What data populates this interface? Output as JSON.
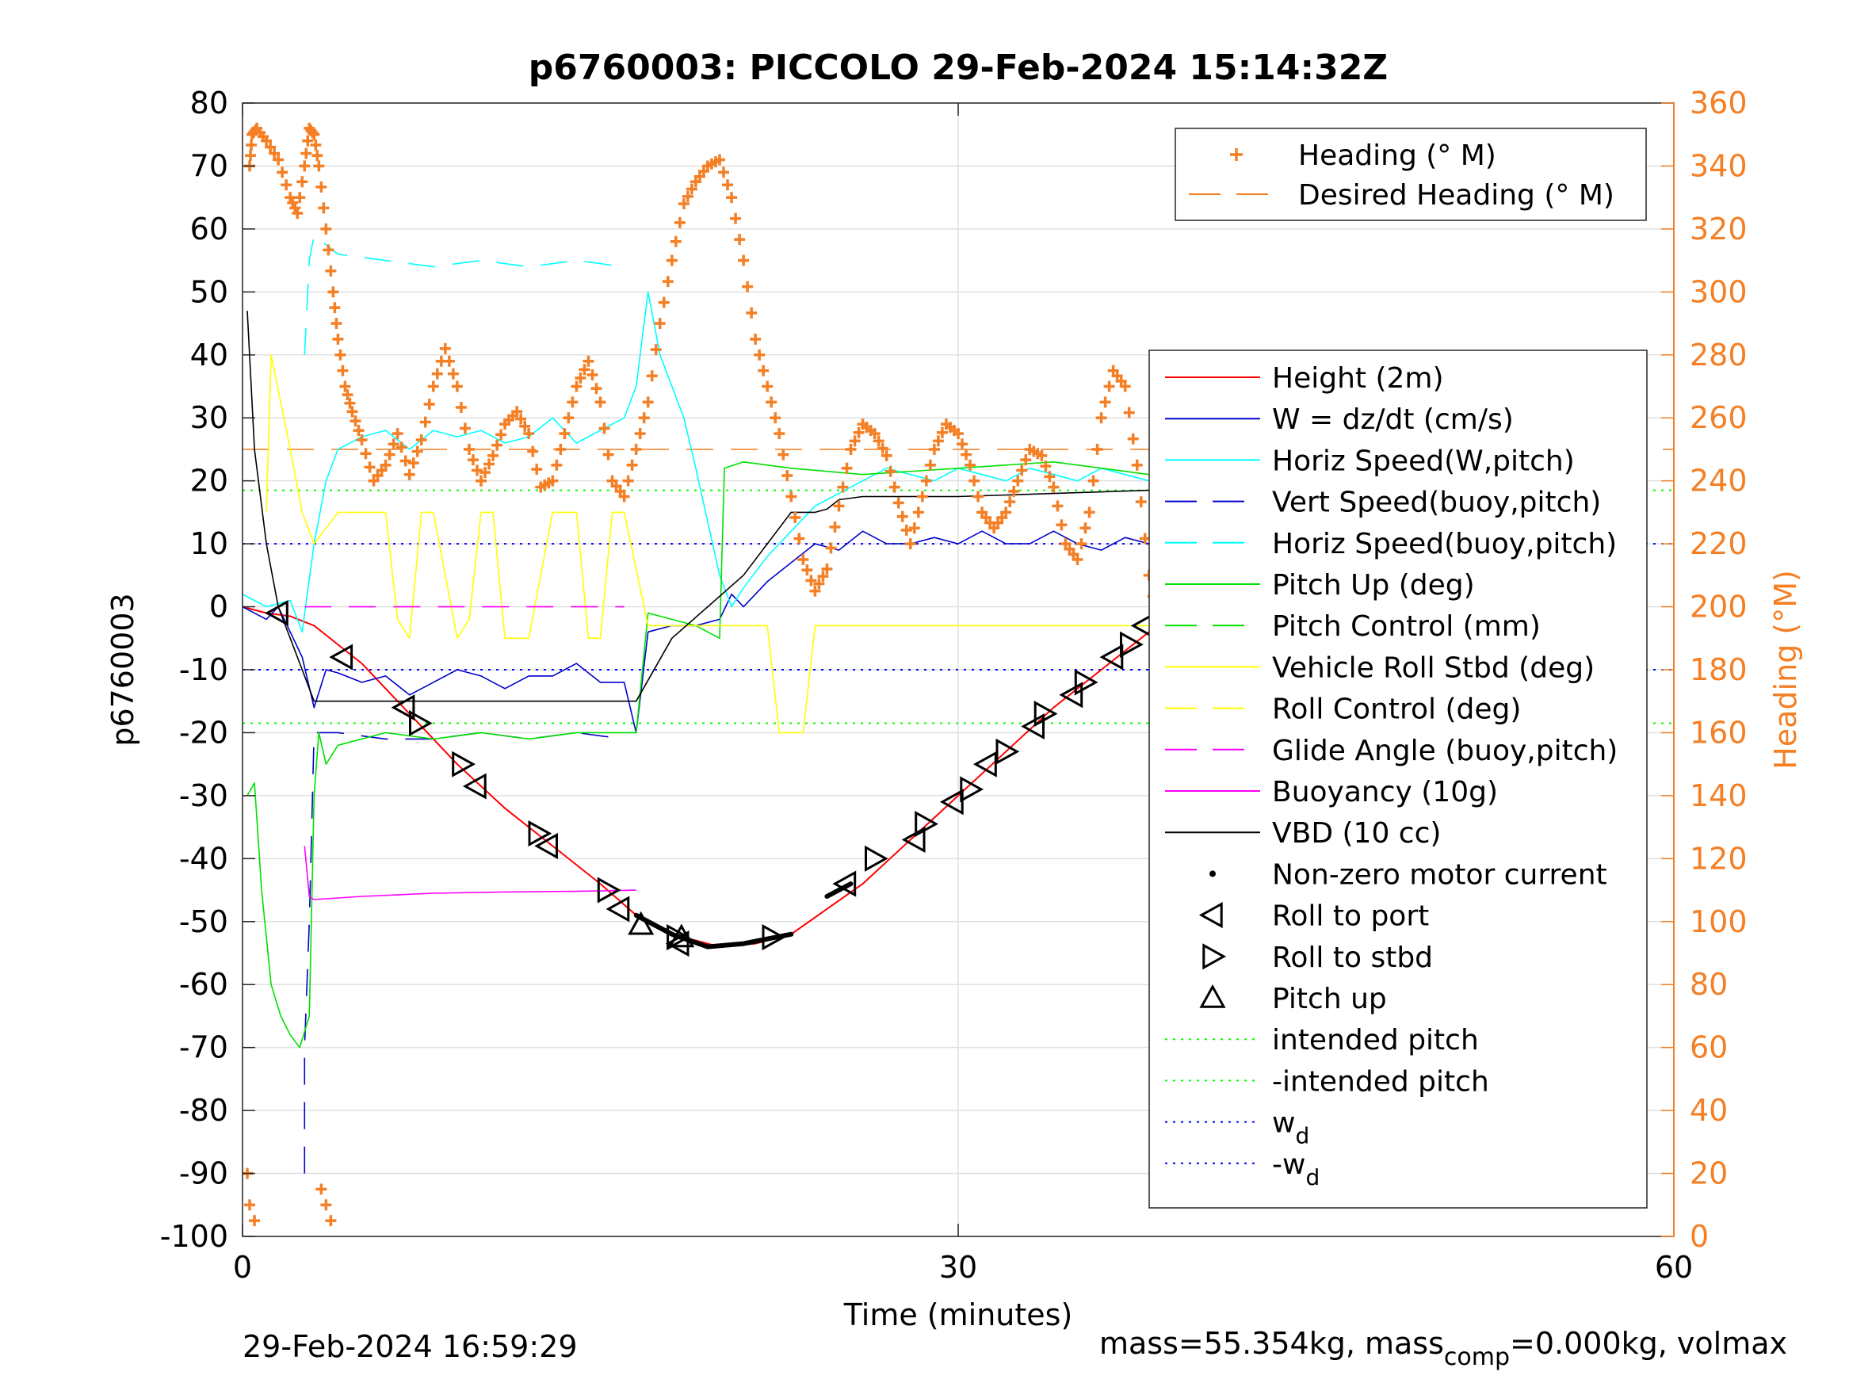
{
  "chart_data": {
    "type": "line",
    "title": "p6760003: PICCOLO 29-Feb-2024 15:14:32Z",
    "xlabel": "Time (minutes)",
    "ylabel_left": "p6760003",
    "ylabel_right": "Heading (°M)",
    "xlim": [
      0,
      60
    ],
    "ylim_left": [
      -100,
      80
    ],
    "ylim_right": [
      0,
      360
    ],
    "x_ticks": [
      "0",
      "30",
      "60"
    ],
    "y_left_ticks": [
      "80",
      "70",
      "60",
      "50",
      "40",
      "30",
      "20",
      "10",
      "0",
      "-10",
      "-20",
      "-30",
      "-40",
      "-50",
      "-60",
      "-70",
      "-80",
      "-90",
      "-100"
    ],
    "y_right_ticks": [
      "360",
      "340",
      "320",
      "300",
      "280",
      "260",
      "240",
      "220",
      "200",
      "180",
      "160",
      "140",
      "120",
      "100",
      "80",
      "60",
      "40",
      "20",
      "0"
    ],
    "grid": true,
    "footer_left": "29-Feb-2024 16:59:29",
    "footer_right": {
      "part1": "mass=55.354kg, mass",
      "subscript": "comp",
      "part2": "=0.000kg, volmax"
    },
    "legend_heading": [
      {
        "label": "Heading (° M)",
        "color": "#f47f24",
        "style": "plus"
      },
      {
        "label": "Desired Heading (° M)",
        "color": "#f47f24",
        "style": "dashed"
      }
    ],
    "legend_main": [
      {
        "label": "Height (2m)",
        "color": "#ff0000",
        "style": "solid"
      },
      {
        "label": "W = dz/dt (cm/s)",
        "color": "#0000cc",
        "style": "solid"
      },
      {
        "label": "Horiz Speed(W,pitch)",
        "color": "#00ffff",
        "style": "solid"
      },
      {
        "label": "Vert Speed(buoy,pitch)",
        "color": "#0000cc",
        "style": "dashed"
      },
      {
        "label": "Horiz Speed(buoy,pitch)",
        "color": "#00ffff",
        "style": "dashed"
      },
      {
        "label": "Pitch Up (deg)",
        "color": "#00e000",
        "style": "solid"
      },
      {
        "label": "Pitch Control (mm)",
        "color": "#00e000",
        "style": "dashed"
      },
      {
        "label": "Vehicle Roll Stbd (deg)",
        "color": "#ffff00",
        "style": "solid"
      },
      {
        "label": "Roll Control (deg)",
        "color": "#ffff00",
        "style": "dashed"
      },
      {
        "label": "Glide Angle (buoy,pitch)",
        "color": "#ff00ff",
        "style": "dashed"
      },
      {
        "label": "Buoyancy (10g)",
        "color": "#ff00ff",
        "style": "solid"
      },
      {
        "label": "VBD (10 cc)",
        "color": "#000000",
        "style": "solid"
      },
      {
        "label": "Non-zero motor current",
        "color": "#000000",
        "style": "dot"
      },
      {
        "label": "Roll to port",
        "color": "#000000",
        "style": "tri-left"
      },
      {
        "label": "Roll to stbd",
        "color": "#000000",
        "style": "tri-right"
      },
      {
        "label": "Pitch up",
        "color": "#000000",
        "style": "tri-up"
      },
      {
        "label": "intended pitch",
        "color": "#00ff00",
        "style": "dotted"
      },
      {
        "label": "-intended pitch",
        "color": "#00ff00",
        "style": "dotted"
      },
      {
        "label": "w",
        "sub": "d",
        "color": "#0000ff",
        "style": "dotted"
      },
      {
        "label": "-w",
        "sub": "d",
        "color": "#0000ff",
        "style": "dotted"
      }
    ],
    "series": [
      {
        "name": "Height (2m)",
        "color": "#ff0000",
        "axis": "left",
        "x": [
          0,
          1,
          2,
          3,
          5,
          7,
          9,
          11,
          13,
          15,
          16.5,
          18,
          20,
          21.5,
          23,
          24.5,
          26,
          28,
          30,
          32,
          34,
          36,
          38,
          39.5,
          40
        ],
        "y": [
          0,
          -1,
          -1.5,
          -3,
          -9,
          -17,
          -25,
          -32,
          -38,
          -44,
          -49,
          -52,
          -54,
          -53.5,
          -52,
          -48,
          -44,
          -37,
          -30,
          -23,
          -16,
          -10,
          -4,
          0,
          0.5
        ]
      },
      {
        "name": "W = dz/dt (cm/s)",
        "color": "#0000cc",
        "axis": "left",
        "x": [
          0,
          1,
          1.5,
          2,
          2.5,
          3,
          3.5,
          4,
          5,
          6,
          7,
          8,
          9,
          10,
          11,
          12,
          13,
          14,
          15,
          16,
          16.5,
          17,
          18,
          19,
          20,
          20.5,
          21,
          22,
          23,
          24,
          25,
          26,
          27,
          28,
          29,
          30,
          31,
          32,
          33,
          34,
          35,
          36,
          37,
          38,
          39,
          39.5
        ],
        "y": [
          0,
          -2,
          0,
          -4,
          -8,
          -16,
          -10,
          -10.5,
          -12,
          -11,
          -14,
          -12,
          -10,
          -11,
          -13,
          -11,
          -11,
          -9,
          -12,
          -12,
          -20,
          -4,
          -3,
          -3,
          -2,
          2,
          0,
          4,
          7,
          10,
          9,
          12,
          10,
          10,
          11,
          10,
          12,
          10,
          10,
          12,
          10,
          9,
          11,
          10,
          9,
          0
        ]
      },
      {
        "name": "Horiz Speed(W,pitch)",
        "color": "#00ffff",
        "axis": "left",
        "x": [
          0,
          1,
          2,
          2.5,
          3,
          3.5,
          4,
          5,
          6,
          7,
          8,
          9,
          10,
          11,
          12,
          13,
          14,
          15,
          16,
          16.5,
          17,
          17.5,
          18,
          18.5,
          19,
          20,
          20.5,
          21,
          22,
          23,
          24,
          25,
          26,
          27,
          28,
          29,
          30,
          31,
          32,
          33,
          34,
          35,
          36,
          37,
          38,
          39,
          39.5
        ],
        "y": [
          2,
          0,
          1,
          -4,
          10,
          20,
          25,
          27,
          28,
          25,
          28,
          27,
          28,
          26,
          27,
          30,
          26,
          28,
          30,
          35,
          50,
          40,
          35,
          30,
          22,
          5,
          0,
          3,
          8,
          12,
          16,
          18,
          20,
          22,
          21,
          20,
          22,
          21,
          20,
          22,
          21,
          20,
          22,
          21,
          20,
          25,
          5
        ]
      },
      {
        "name": "Vert Speed(buoy,pitch)",
        "color": "#0000cc",
        "axis": "left",
        "x": [
          2.6,
          2.6,
          2.8,
          3,
          4,
          6,
          8,
          10,
          12,
          14,
          16
        ],
        "y": [
          -90,
          -70,
          -50,
          -20,
          -20,
          -21,
          -21,
          -20,
          -21,
          -20,
          -21
        ]
      },
      {
        "name": "Horiz Speed(buoy,pitch)",
        "color": "#00ffff",
        "axis": "left",
        "x": [
          2.6,
          2.8,
          3,
          4,
          6,
          8,
          10,
          12,
          14,
          16
        ],
        "y": [
          40,
          55,
          59,
          56,
          55,
          54,
          55,
          54,
          55,
          54
        ]
      },
      {
        "name": "Pitch Up (deg)",
        "color": "#00e000",
        "axis": "left",
        "x": [
          0.2,
          0.5,
          0.8,
          1.2,
          1.6,
          2,
          2.4,
          2.8,
          3,
          3.2,
          3.5,
          4,
          6,
          8,
          10,
          12,
          14,
          16,
          16.5,
          17,
          18,
          19,
          20,
          20.2,
          21,
          23,
          26,
          30,
          34,
          38,
          39.5
        ],
        "y": [
          -30,
          -28,
          -45,
          -60,
          -65,
          -68,
          -70,
          -65,
          -30,
          -20,
          -25,
          -22,
          -20,
          -21,
          -20,
          -21,
          -20,
          -20,
          -20,
          -1,
          -2,
          -3,
          -5,
          22,
          23,
          22,
          21,
          22,
          23,
          21,
          3
        ]
      },
      {
        "name": "Vehicle Roll Stbd (deg)",
        "color": "#ffff00",
        "axis": "left",
        "x": [
          1,
          1.2,
          2,
          2.5,
          3,
          4,
          5,
          6,
          6.5,
          7,
          7.5,
          8,
          9,
          9.5,
          10,
          10.5,
          11,
          12,
          13,
          14,
          14.5,
          15,
          15.5,
          16,
          17,
          20,
          22,
          22.5,
          23.5,
          24,
          25,
          27,
          30,
          32,
          34,
          36,
          38,
          39.5
        ],
        "y": [
          15,
          40,
          25,
          15,
          10,
          15,
          15,
          15,
          -2,
          -5,
          15,
          15,
          -5,
          -2,
          15,
          15,
          -5,
          -5,
          15,
          15,
          -5,
          -5,
          15,
          15,
          -3,
          -3,
          -3,
          -20,
          -20,
          -3,
          -3,
          -3,
          -3,
          -3,
          -3,
          -3,
          -3,
          -3
        ]
      },
      {
        "name": "Glide Angle (buoy,pitch)",
        "color": "#ff00ff",
        "axis": "left",
        "x": [
          2.6,
          3,
          4,
          6,
          8,
          10,
          12,
          14,
          16
        ],
        "y": [
          0,
          0,
          0,
          0,
          0,
          0,
          0,
          0,
          0
        ]
      },
      {
        "name": "Buoyancy (10g)",
        "color": "#ff00ff",
        "axis": "left",
        "x": [
          2.6,
          2.8,
          3,
          5,
          8,
          11,
          14,
          16.5
        ],
        "y": [
          -38,
          -46,
          -46.5,
          -46,
          -45.5,
          -45.3,
          -45.2,
          -45
        ]
      },
      {
        "name": "VBD (10 cc)",
        "color": "#000000",
        "axis": "left",
        "x": [
          0.2,
          0.5,
          1,
          1.5,
          2,
          2.5,
          3,
          4,
          6,
          10,
          14,
          16,
          16.5,
          18,
          19.5,
          21,
          23,
          24,
          24.5,
          25,
          26,
          30,
          34,
          38,
          40
        ],
        "y": [
          47,
          25,
          10,
          0,
          -5,
          -10,
          -15,
          -15,
          -15,
          -15,
          -15,
          -15,
          -15,
          -5,
          0,
          5,
          15,
          15,
          15.5,
          17,
          17.5,
          17.5,
          18,
          18.5,
          19
        ]
      }
    ],
    "heading": {
      "name": "Heading (° M)",
      "color": "#f47f24",
      "axis": "right",
      "x": [
        0.3,
        0.4,
        0.6,
        1,
        1.5,
        2,
        2.3,
        2.6,
        2.8,
        3,
        3.2,
        3.5,
        3.8,
        4,
        4.3,
        4.6,
        5,
        5.5,
        6,
        6.5,
        7,
        7.5,
        8,
        8.5,
        9,
        9.5,
        10,
        10.5,
        11,
        11.5,
        12,
        12.5,
        13,
        13.5,
        14,
        14.5,
        15,
        15.5,
        16,
        16.5,
        17,
        17.5,
        18,
        18.5,
        19,
        19.5,
        20,
        20.5,
        21,
        21.5,
        22,
        22.5,
        23,
        23.5,
        24,
        24.5,
        25,
        25.5,
        26,
        26.5,
        27,
        27.5,
        28,
        28.5,
        29,
        29.5,
        30,
        30.5,
        31,
        31.5,
        32,
        32.5,
        33,
        33.5,
        34,
        34.5,
        35,
        35.5,
        36,
        36.5,
        37,
        37.5,
        38,
        38.5,
        39,
        39.5
      ],
      "y": [
        340,
        350,
        352,
        348,
        342,
        330,
        325,
        340,
        352,
        350,
        340,
        320,
        300,
        285,
        270,
        262,
        253,
        240,
        245,
        255,
        242,
        253,
        270,
        282,
        270,
        250,
        240,
        248,
        258,
        262,
        255,
        238,
        240,
        255,
        270,
        278,
        265,
        240,
        235,
        250,
        265,
        290,
        310,
        328,
        335,
        340,
        342,
        330,
        310,
        285,
        270,
        255,
        235,
        215,
        205,
        212,
        232,
        250,
        258,
        255,
        248,
        233,
        220,
        235,
        250,
        258,
        255,
        245,
        230,
        225,
        230,
        240,
        250,
        248,
        238,
        220,
        215,
        230,
        260,
        275,
        270,
        245,
        210,
        190,
        175,
        140
      ]
    },
    "heading_extra": {
      "x": [
        0.2,
        0.3,
        0.5,
        3.3,
        3.5,
        3.7
      ],
      "y": [
        20,
        10,
        5,
        15,
        10,
        5
      ]
    },
    "desired_heading": 250,
    "intended_pitch": 18.5,
    "w_d": 10,
    "motor_current_segments": [
      {
        "x": [
          16.5,
          18,
          19.5,
          21,
          23
        ],
        "y": [
          -49,
          -52,
          -54,
          -53.5,
          -52
        ]
      },
      {
        "x": [
          24.5,
          25.5
        ],
        "y": [
          -46,
          -44
        ]
      },
      {
        "x": [
          38.5,
          39.5
        ],
        "y": [
          -1.5,
          0
        ]
      }
    ],
    "roll_to_port_markers": [
      {
        "x": 1.5,
        "y": -1
      },
      {
        "x": 4.2,
        "y": -8
      },
      {
        "x": 6.8,
        "y": -16
      },
      {
        "x": 9.8,
        "y": -28.5
      },
      {
        "x": 12.8,
        "y": -38
      },
      {
        "x": 15.8,
        "y": -48
      },
      {
        "x": 18.3,
        "y": -53.5
      },
      {
        "x": 25.3,
        "y": -44
      },
      {
        "x": 28.2,
        "y": -37
      },
      {
        "x": 29.8,
        "y": -31
      },
      {
        "x": 31.2,
        "y": -25
      },
      {
        "x": 33.2,
        "y": -19
      },
      {
        "x": 34.8,
        "y": -14
      },
      {
        "x": 36.5,
        "y": -8
      },
      {
        "x": 37.8,
        "y": -3
      }
    ],
    "roll_to_stbd_markers": [
      {
        "x": 7.4,
        "y": -18.5
      },
      {
        "x": 9.2,
        "y": -25
      },
      {
        "x": 12.4,
        "y": -36
      },
      {
        "x": 15.3,
        "y": -45
      },
      {
        "x": 18.2,
        "y": -52.5
      },
      {
        "x": 22.2,
        "y": -52.5
      },
      {
        "x": 26.5,
        "y": -40
      },
      {
        "x": 28.6,
        "y": -34.5
      },
      {
        "x": 30.5,
        "y": -29
      },
      {
        "x": 32,
        "y": -23
      },
      {
        "x": 33.6,
        "y": -17
      },
      {
        "x": 35.3,
        "y": -12
      },
      {
        "x": 37.2,
        "y": -6
      },
      {
        "x": 38.6,
        "y": -2.5
      }
    ],
    "pitch_up_markers": [
      {
        "x": 16.7,
        "y": -50.5
      },
      {
        "x": 18.4,
        "y": -52.5
      }
    ]
  }
}
